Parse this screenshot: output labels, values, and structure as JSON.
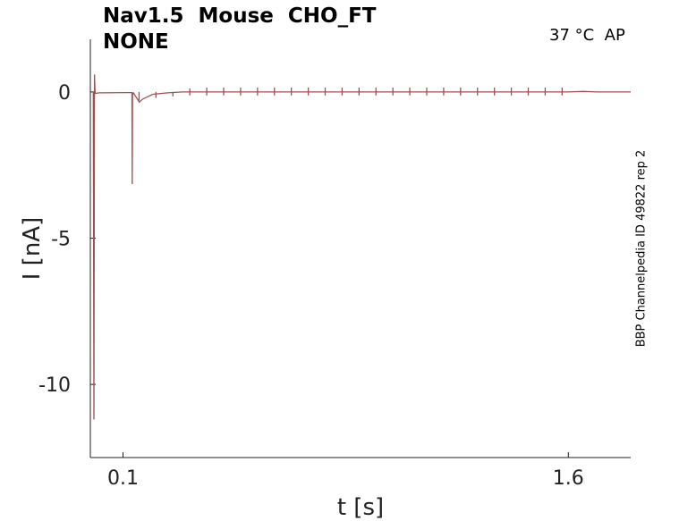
{
  "header": {
    "title_line1": "Nav1.5  Mouse  CHO_FT",
    "title_line2": "NONE",
    "conditions": "37 °C  AP",
    "side_label": "BBP Channelpedia ID 49822 rep 2"
  },
  "colors": {
    "trace": "#a05050",
    "axis": "#222222"
  },
  "chart_data": {
    "type": "line",
    "xlabel": "t [s]",
    "ylabel": "I [nA]",
    "xlim": [
      -0.01,
      1.81
    ],
    "ylim": [
      -12.5,
      1.8
    ],
    "xticks": [
      0.1,
      1.6
    ],
    "xtick_labels": [
      "0.1",
      "1.6"
    ],
    "yticks": [
      0,
      -5,
      -10
    ],
    "ytick_labels": [
      "0",
      "-5",
      "-10"
    ],
    "grid": false,
    "series": [
      {
        "x": [
          0.0,
          0.002,
          0.004,
          0.006,
          0.02,
          0.12,
          0.13,
          0.131,
          0.132,
          0.135,
          0.155,
          0.165,
          0.2,
          0.25,
          0.3,
          0.6,
          0.9,
          1.2,
          1.5,
          1.6,
          1.65,
          1.7,
          1.75,
          1.81
        ],
        "y": [
          0.0,
          -11.2,
          0.6,
          -0.05,
          -0.03,
          -0.02,
          -0.02,
          -3.15,
          -0.1,
          -0.03,
          -0.35,
          -0.25,
          -0.08,
          -0.03,
          0.0,
          0.0,
          0.0,
          0.0,
          0.0,
          0.0,
          0.02,
          0.0,
          0.0,
          0.0
        ]
      }
    ],
    "ap_spikes": {
      "times": [
        0.154,
        0.211,
        0.268,
        0.325,
        0.382,
        0.439,
        0.496,
        0.553,
        0.61,
        0.667,
        0.724,
        0.781,
        0.838,
        0.895,
        0.952,
        1.009,
        1.066,
        1.123,
        1.18,
        1.237,
        1.294,
        1.351,
        1.408,
        1.465,
        1.522,
        1.579
      ],
      "peak_values": [
        -0.3,
        -0.2,
        -0.15,
        0.12,
        0.15,
        0.15,
        0.15,
        0.15,
        0.15,
        0.15,
        0.15,
        0.15,
        0.15,
        0.15,
        0.15,
        0.15,
        0.15,
        0.15,
        0.15,
        0.15,
        0.15,
        0.15,
        0.15,
        0.15,
        0.15,
        0.15
      ]
    }
  }
}
